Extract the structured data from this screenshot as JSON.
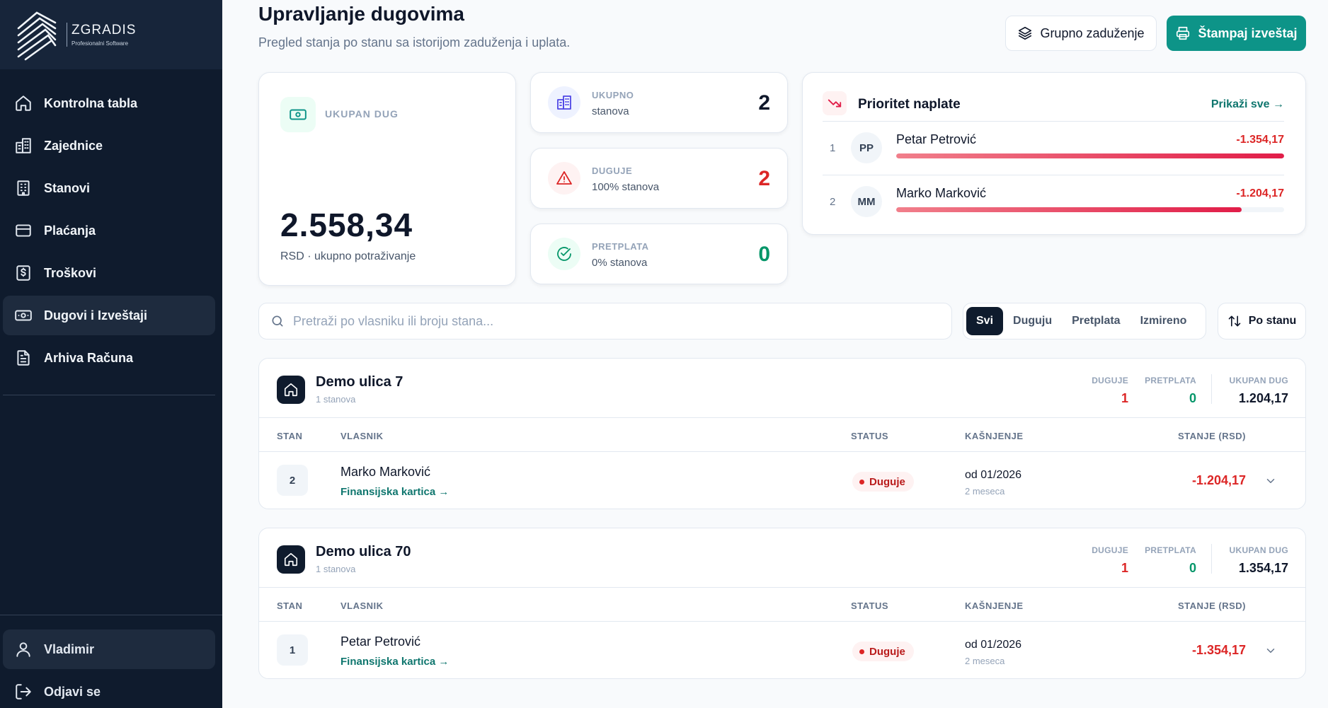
{
  "colors": {
    "sidebar_bg": "#0f1b2d",
    "accent": "#0d9488",
    "danger": "#dc2626",
    "success": "#059669"
  },
  "brand": {
    "name": "ZGRADIS",
    "tagline": "Profesionalni Software"
  },
  "nav": {
    "items": [
      {
        "label": "Kontrolna tabla",
        "icon": "home-icon"
      },
      {
        "label": "Zajednice",
        "icon": "buildings-icon"
      },
      {
        "label": "Stanovi",
        "icon": "building-icon"
      },
      {
        "label": "Plaćanja",
        "icon": "card-icon"
      },
      {
        "label": "Troškovi",
        "icon": "receipt-icon"
      },
      {
        "label": "Dugovi i Izveštaji",
        "icon": "banknote-icon",
        "active": true
      },
      {
        "label": "Arhiva Računa",
        "icon": "file-icon"
      }
    ],
    "user": "Vladimir",
    "logout": "Odjavi se"
  },
  "header": {
    "title": "Upravljanje dugovima",
    "subtitle": "Pregled stanja po stanu sa istorijom zaduženja i uplata.",
    "group_charge_label": "Grupno zaduženje",
    "print_label": "Štampaj izveštaj"
  },
  "total": {
    "label": "UKUPAN DUG",
    "value": "2.558,34",
    "caption": "RSD · ukupno potraživanje"
  },
  "stats": {
    "units": {
      "label": "UKUPNO",
      "sub": "stanova",
      "value": "2"
    },
    "owing": {
      "label": "DUGUJE",
      "sub": "100% stanova",
      "value": "2"
    },
    "prepaid": {
      "label": "PRETPLATA",
      "sub": "0% stanova",
      "value": "0"
    }
  },
  "priority": {
    "title": "Prioritet naplate",
    "show_all": "Prikaži sve →",
    "items": [
      {
        "rank": "1",
        "initials": "PP",
        "name": "Petar Petrović",
        "amount": "-1.354,17",
        "level": 1.0
      },
      {
        "rank": "2",
        "initials": "MM",
        "name": "Marko Marković",
        "amount": "-1.204,17",
        "level": 0.89
      }
    ]
  },
  "search": {
    "placeholder": "Pretraži po vlasniku ili broju stana...",
    "value": ""
  },
  "filters": [
    "Svi",
    "Duguju",
    "Pretplata",
    "Izmireno"
  ],
  "sort_label": "Po stanu",
  "columns": {
    "unit": "STAN",
    "owner": "VLASNIK",
    "status": "STATUS",
    "delay": "KAŠNJENJE",
    "balance": "STANJE (RSD)"
  },
  "group_stat_labels": {
    "owing": "DUGUJE",
    "prepaid": "PRETPLATA",
    "total": "UKUPAN DUG"
  },
  "groups": [
    {
      "name": "Demo ulica 7",
      "count": "1 stanova",
      "owing": "1",
      "prepaid": "0",
      "total": "1.204,17",
      "rows": [
        {
          "unit": "2",
          "owner": "Marko Marković",
          "link": "Finansijska kartica →",
          "status": "Duguje",
          "delay_date": "od 01/2026",
          "delay_sub": "2 meseca",
          "balance": "-1.204,17"
        }
      ]
    },
    {
      "name": "Demo ulica 70",
      "count": "1 stanova",
      "owing": "1",
      "prepaid": "0",
      "total": "1.354,17",
      "rows": [
        {
          "unit": "1",
          "owner": "Petar Petrović",
          "link": "Finansijska kartica →",
          "status": "Duguje",
          "delay_date": "od 01/2026",
          "delay_sub": "2 meseca",
          "balance": "-1.354,17"
        }
      ]
    }
  ]
}
